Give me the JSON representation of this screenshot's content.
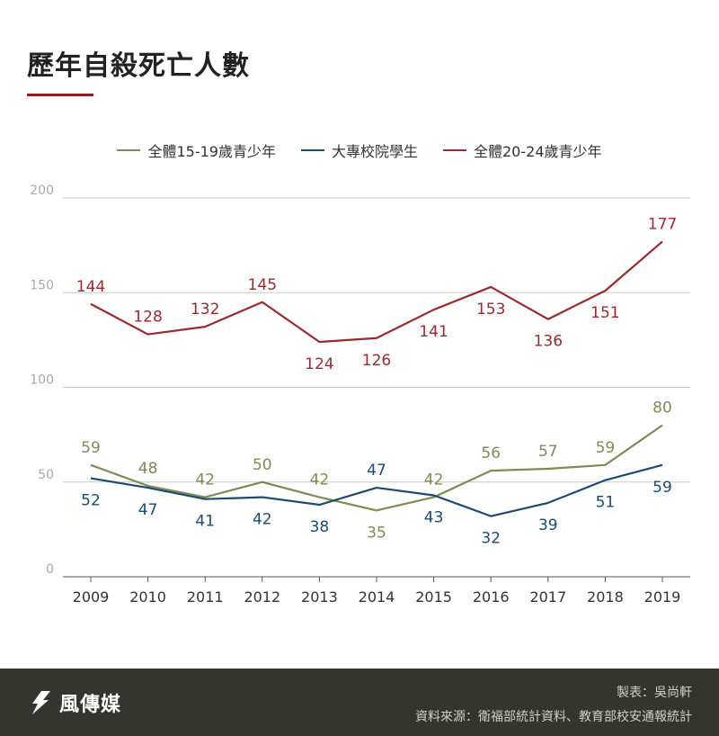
{
  "title": "歷年自殺死亡人數",
  "colors": {
    "accent": "#8e1c22",
    "series_green": "#7d8c55",
    "series_blue": "#1c4a72",
    "series_red": "#992a2e",
    "grid": "#c9c9c9",
    "footer_bg": "#353530"
  },
  "footer": {
    "brand_icon": "feather-logo-icon",
    "brand_name": "風傳媒",
    "credit_line1": "製表：吳尚軒",
    "credit_line2": "資料來源：衛福部統計資料、教育部校安通報統計"
  },
  "chart_data": {
    "type": "line",
    "title": "歷年自殺死亡人數",
    "xlabel": "",
    "ylabel": "",
    "ylim": [
      0,
      200
    ],
    "yticks": [
      0,
      50,
      100,
      150,
      200
    ],
    "grid": true,
    "legend_position": "top",
    "x": [
      "2009",
      "2010",
      "2011",
      "2012",
      "2013",
      "2014",
      "2015",
      "2016",
      "2017",
      "2018",
      "2019"
    ],
    "series": [
      {
        "name": "全體15-19歲青少年",
        "color": "#7d8c55",
        "values": [
          59,
          48,
          42,
          50,
          42,
          35,
          42,
          56,
          57,
          59,
          80
        ],
        "label_pos": [
          "above",
          "above",
          "above",
          "above",
          "above",
          "below",
          "above",
          "above",
          "above",
          "above",
          "above"
        ]
      },
      {
        "name": "大專校院學生",
        "color": "#1c4a72",
        "values": [
          52,
          47,
          41,
          42,
          38,
          47,
          43,
          32,
          39,
          51,
          59
        ],
        "label_pos": [
          "below",
          "below",
          "below",
          "below",
          "below",
          "above",
          "below",
          "below",
          "below",
          "below",
          "below"
        ]
      },
      {
        "name": "全體20-24歲青少年",
        "color": "#992a2e",
        "values": [
          144,
          128,
          132,
          145,
          124,
          126,
          141,
          153,
          136,
          151,
          177
        ],
        "label_pos": [
          "above",
          "above",
          "above",
          "above",
          "below",
          "below",
          "below",
          "below",
          "below",
          "below",
          "above"
        ]
      }
    ]
  }
}
